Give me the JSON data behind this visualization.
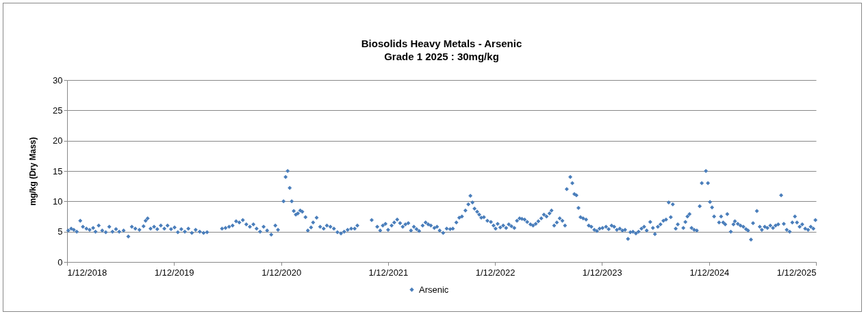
{
  "chart_data": {
    "type": "scatter",
    "title": "Biosolids Heavy Metals - Arsenic",
    "subtitle": "Grade 1 2025 : 30mg/kg",
    "ylabel": "mg/kg (Dry Mass)",
    "xlim": [
      "2018-12-01",
      "2025-12-01"
    ],
    "xticks": [
      {
        "value": "2018-12-01",
        "label": "1/12/2018"
      },
      {
        "value": "2019-12-01",
        "label": "1/12/2019"
      },
      {
        "value": "2020-12-01",
        "label": "1/12/2020"
      },
      {
        "value": "2021-12-01",
        "label": "1/12/2021"
      },
      {
        "value": "2022-12-01",
        "label": "1/12/2022"
      },
      {
        "value": "2023-12-01",
        "label": "1/12/2023"
      },
      {
        "value": "2024-12-01",
        "label": "1/12/2024"
      },
      {
        "value": "2025-12-01",
        "label": "1/12/2025"
      }
    ],
    "ylim": [
      0,
      30
    ],
    "yticks": [
      0,
      5,
      10,
      15,
      20,
      25,
      30
    ],
    "grid": "y",
    "legend": "bottom",
    "marker": "diamond",
    "x": [
      "2018-12-05",
      "2018-12-15",
      "2018-12-24",
      "2019-01-03",
      "2019-01-15",
      "2019-01-24",
      "2019-02-05",
      "2019-02-16",
      "2019-02-28",
      "2019-03-08",
      "2019-03-19",
      "2019-03-31",
      "2019-04-12",
      "2019-04-24",
      "2019-05-05",
      "2019-05-17",
      "2019-05-28",
      "2019-06-12",
      "2019-06-28",
      "2019-07-10",
      "2019-07-22",
      "2019-08-05",
      "2019-08-19",
      "2019-08-26",
      "2019-09-02",
      "2019-09-12",
      "2019-09-24",
      "2019-10-05",
      "2019-10-17",
      "2019-10-29",
      "2019-11-09",
      "2019-11-21",
      "2019-12-03",
      "2019-12-14",
      "2019-12-26",
      "2020-01-07",
      "2020-01-19",
      "2020-01-31",
      "2020-02-13",
      "2020-02-27",
      "2020-03-11",
      "2020-03-23",
      "2020-05-13",
      "2020-05-25",
      "2020-06-06",
      "2020-06-18",
      "2020-06-30",
      "2020-07-11",
      "2020-07-23",
      "2020-08-04",
      "2020-08-16",
      "2020-08-28",
      "2020-09-08",
      "2020-09-20",
      "2020-10-02",
      "2020-10-14",
      "2020-10-28",
      "2020-11-11",
      "2020-11-20",
      "2020-12-09",
      "2020-12-16",
      "2020-12-23",
      "2020-12-30",
      "2021-01-06",
      "2021-01-13",
      "2021-01-20",
      "2021-01-27",
      "2021-02-04",
      "2021-02-11",
      "2021-02-22",
      "2021-03-02",
      "2021-03-13",
      "2021-03-20",
      "2021-04-01",
      "2021-04-13",
      "2021-04-25",
      "2021-05-06",
      "2021-05-18",
      "2021-05-30",
      "2021-06-11",
      "2021-06-23",
      "2021-07-04",
      "2021-07-16",
      "2021-07-28",
      "2021-08-09",
      "2021-08-18",
      "2021-10-06",
      "2021-10-25",
      "2021-11-04",
      "2021-11-13",
      "2021-11-22",
      "2021-12-01",
      "2021-12-13",
      "2021-12-22",
      "2022-01-01",
      "2022-01-11",
      "2022-01-20",
      "2022-01-29",
      "2022-02-08",
      "2022-02-17",
      "2022-02-27",
      "2022-03-08",
      "2022-03-17",
      "2022-03-29",
      "2022-04-08",
      "2022-04-17",
      "2022-04-26",
      "2022-05-08",
      "2022-05-17",
      "2022-05-26",
      "2022-06-07",
      "2022-06-19",
      "2022-07-01",
      "2022-07-10",
      "2022-07-22",
      "2022-08-01",
      "2022-08-10",
      "2022-08-22",
      "2022-09-01",
      "2022-09-08",
      "2022-09-15",
      "2022-09-22",
      "2022-10-01",
      "2022-10-08",
      "2022-10-15",
      "2022-10-24",
      "2022-11-05",
      "2022-11-17",
      "2022-11-26",
      "2022-12-03",
      "2022-12-10",
      "2022-12-19",
      "2022-12-29",
      "2023-01-08",
      "2023-01-17",
      "2023-01-26",
      "2023-02-05",
      "2023-02-14",
      "2023-02-23",
      "2023-03-03",
      "2023-03-12",
      "2023-03-21",
      "2023-04-01",
      "2023-04-10",
      "2023-04-19",
      "2023-04-28",
      "2023-05-08",
      "2023-05-17",
      "2023-05-26",
      "2023-06-05",
      "2023-06-12",
      "2023-06-21",
      "2023-06-30",
      "2023-07-10",
      "2023-07-19",
      "2023-07-28",
      "2023-08-03",
      "2023-08-15",
      "2023-08-22",
      "2023-08-29",
      "2023-09-05",
      "2023-09-12",
      "2023-09-19",
      "2023-09-28",
      "2023-10-08",
      "2023-10-17",
      "2023-10-26",
      "2023-11-05",
      "2023-11-14",
      "2023-11-23",
      "2023-12-03",
      "2023-12-15",
      "2023-12-24",
      "2024-01-03",
      "2024-01-12",
      "2024-01-21",
      "2024-01-31",
      "2024-02-09",
      "2024-02-18",
      "2024-02-28",
      "2024-03-07",
      "2024-03-16",
      "2024-03-26",
      "2024-04-04",
      "2024-04-14",
      "2024-04-23",
      "2024-05-02",
      "2024-05-14",
      "2024-05-23",
      "2024-05-30",
      "2024-06-09",
      "2024-06-18",
      "2024-06-28",
      "2024-07-07",
      "2024-07-16",
      "2024-07-23",
      "2024-07-30",
      "2024-08-09",
      "2024-08-16",
      "2024-09-04",
      "2024-09-11",
      "2024-09-18",
      "2024-09-25",
      "2024-10-02",
      "2024-10-11",
      "2024-10-20",
      "2024-10-30",
      "2024-11-06",
      "2024-11-20",
      "2024-11-27",
      "2024-12-04",
      "2024-12-11",
      "2024-12-18",
      "2025-01-04",
      "2025-01-11",
      "2025-01-18",
      "2025-01-25",
      "2025-02-01",
      "2025-02-13",
      "2025-02-22",
      "2025-02-27",
      "2025-03-09",
      "2025-03-18",
      "2025-03-28",
      "2025-04-06",
      "2025-04-13",
      "2025-04-23",
      "2025-04-30",
      "2025-05-13",
      "2025-05-23",
      "2025-05-30",
      "2025-06-09",
      "2025-06-18",
      "2025-06-28",
      "2025-07-07",
      "2025-07-16",
      "2025-07-25",
      "2025-08-04",
      "2025-08-13",
      "2025-08-23",
      "2025-09-02",
      "2025-09-11",
      "2025-09-20",
      "2025-09-27",
      "2025-10-06",
      "2025-10-15",
      "2025-10-25",
      "2025-11-04",
      "2025-11-13",
      "2025-11-22",
      "2025-11-29"
    ],
    "series": [
      {
        "name": "Arsenic",
        "color": "#4a7ebb",
        "values": [
          5.2,
          5.5,
          5.3,
          5.0,
          6.8,
          5.8,
          5.5,
          5.3,
          5.6,
          5.0,
          6.0,
          5.2,
          4.9,
          5.8,
          5.0,
          5.4,
          5.0,
          5.2,
          4.2,
          5.8,
          5.5,
          5.3,
          5.9,
          6.8,
          7.2,
          5.5,
          5.8,
          5.4,
          6.0,
          5.5,
          6.0,
          5.4,
          5.7,
          4.9,
          5.4,
          5.0,
          5.5,
          4.8,
          5.3,
          5.0,
          4.8,
          4.9,
          5.5,
          5.6,
          5.8,
          6.0,
          6.7,
          6.5,
          6.9,
          6.2,
          5.8,
          6.2,
          5.5,
          5.0,
          5.8,
          5.2,
          4.5,
          6.0,
          5.3,
          10.0,
          14.0,
          15.0,
          12.2,
          10.0,
          8.4,
          7.8,
          8.0,
          8.5,
          8.3,
          7.4,
          5.2,
          5.7,
          6.5,
          7.3,
          5.8,
          5.5,
          6.0,
          5.8,
          5.5,
          4.9,
          4.7,
          5.0,
          5.3,
          5.5,
          5.5,
          6.0,
          6.9,
          5.8,
          5.2,
          6.0,
          6.3,
          5.3,
          6.0,
          6.5,
          7.0,
          6.4,
          5.8,
          6.2,
          6.4,
          5.2,
          5.8,
          5.4,
          5.1,
          6.0,
          6.5,
          6.2,
          6.0,
          5.6,
          5.8,
          5.2,
          4.8,
          5.5,
          5.4,
          5.5,
          6.5,
          7.3,
          7.5,
          8.5,
          9.5,
          10.9,
          9.8,
          8.8,
          8.3,
          7.8,
          7.3,
          7.4,
          6.8,
          6.6,
          6.0,
          5.5,
          6.3,
          5.7,
          6.0,
          5.6,
          6.2,
          5.9,
          5.6,
          6.8,
          7.2,
          7.1,
          7.0,
          6.6,
          6.2,
          6.0,
          6.3,
          6.7,
          7.2,
          7.8,
          7.5,
          8.0,
          8.5,
          6.0,
          6.5,
          7.2,
          6.8,
          6.0,
          12.0,
          14.0,
          13.0,
          11.2,
          11.0,
          8.9,
          7.4,
          7.2,
          7.0,
          6.0,
          5.8,
          5.3,
          5.1,
          5.5,
          5.6,
          5.8,
          5.4,
          6.0,
          5.8,
          5.3,
          5.5,
          5.2,
          5.3,
          3.8,
          4.9,
          5.0,
          4.7,
          5.0,
          5.5,
          5.8,
          5.2,
          6.6,
          5.6,
          4.6,
          5.8,
          6.2,
          6.8,
          7.0,
          9.8,
          7.4,
          9.5,
          5.5,
          6.2,
          5.6,
          6.6,
          7.5,
          7.9,
          5.6,
          5.3,
          5.2,
          9.2,
          13.0,
          15.0,
          13.0,
          9.9,
          9.0,
          7.5,
          6.5,
          7.5,
          6.5,
          6.2,
          7.9,
          5.0,
          6.2,
          6.7,
          6.3,
          6.0,
          5.8,
          5.4,
          5.2,
          3.7,
          6.4,
          8.4,
          5.8,
          5.3,
          5.8,
          5.6,
          6.0,
          5.6,
          6.0,
          6.2,
          11.0,
          6.3,
          5.3,
          5.0,
          6.5,
          7.5,
          6.5,
          5.8,
          6.2,
          5.5,
          5.3,
          5.8,
          5.5,
          6.9
        ]
      }
    ]
  }
}
